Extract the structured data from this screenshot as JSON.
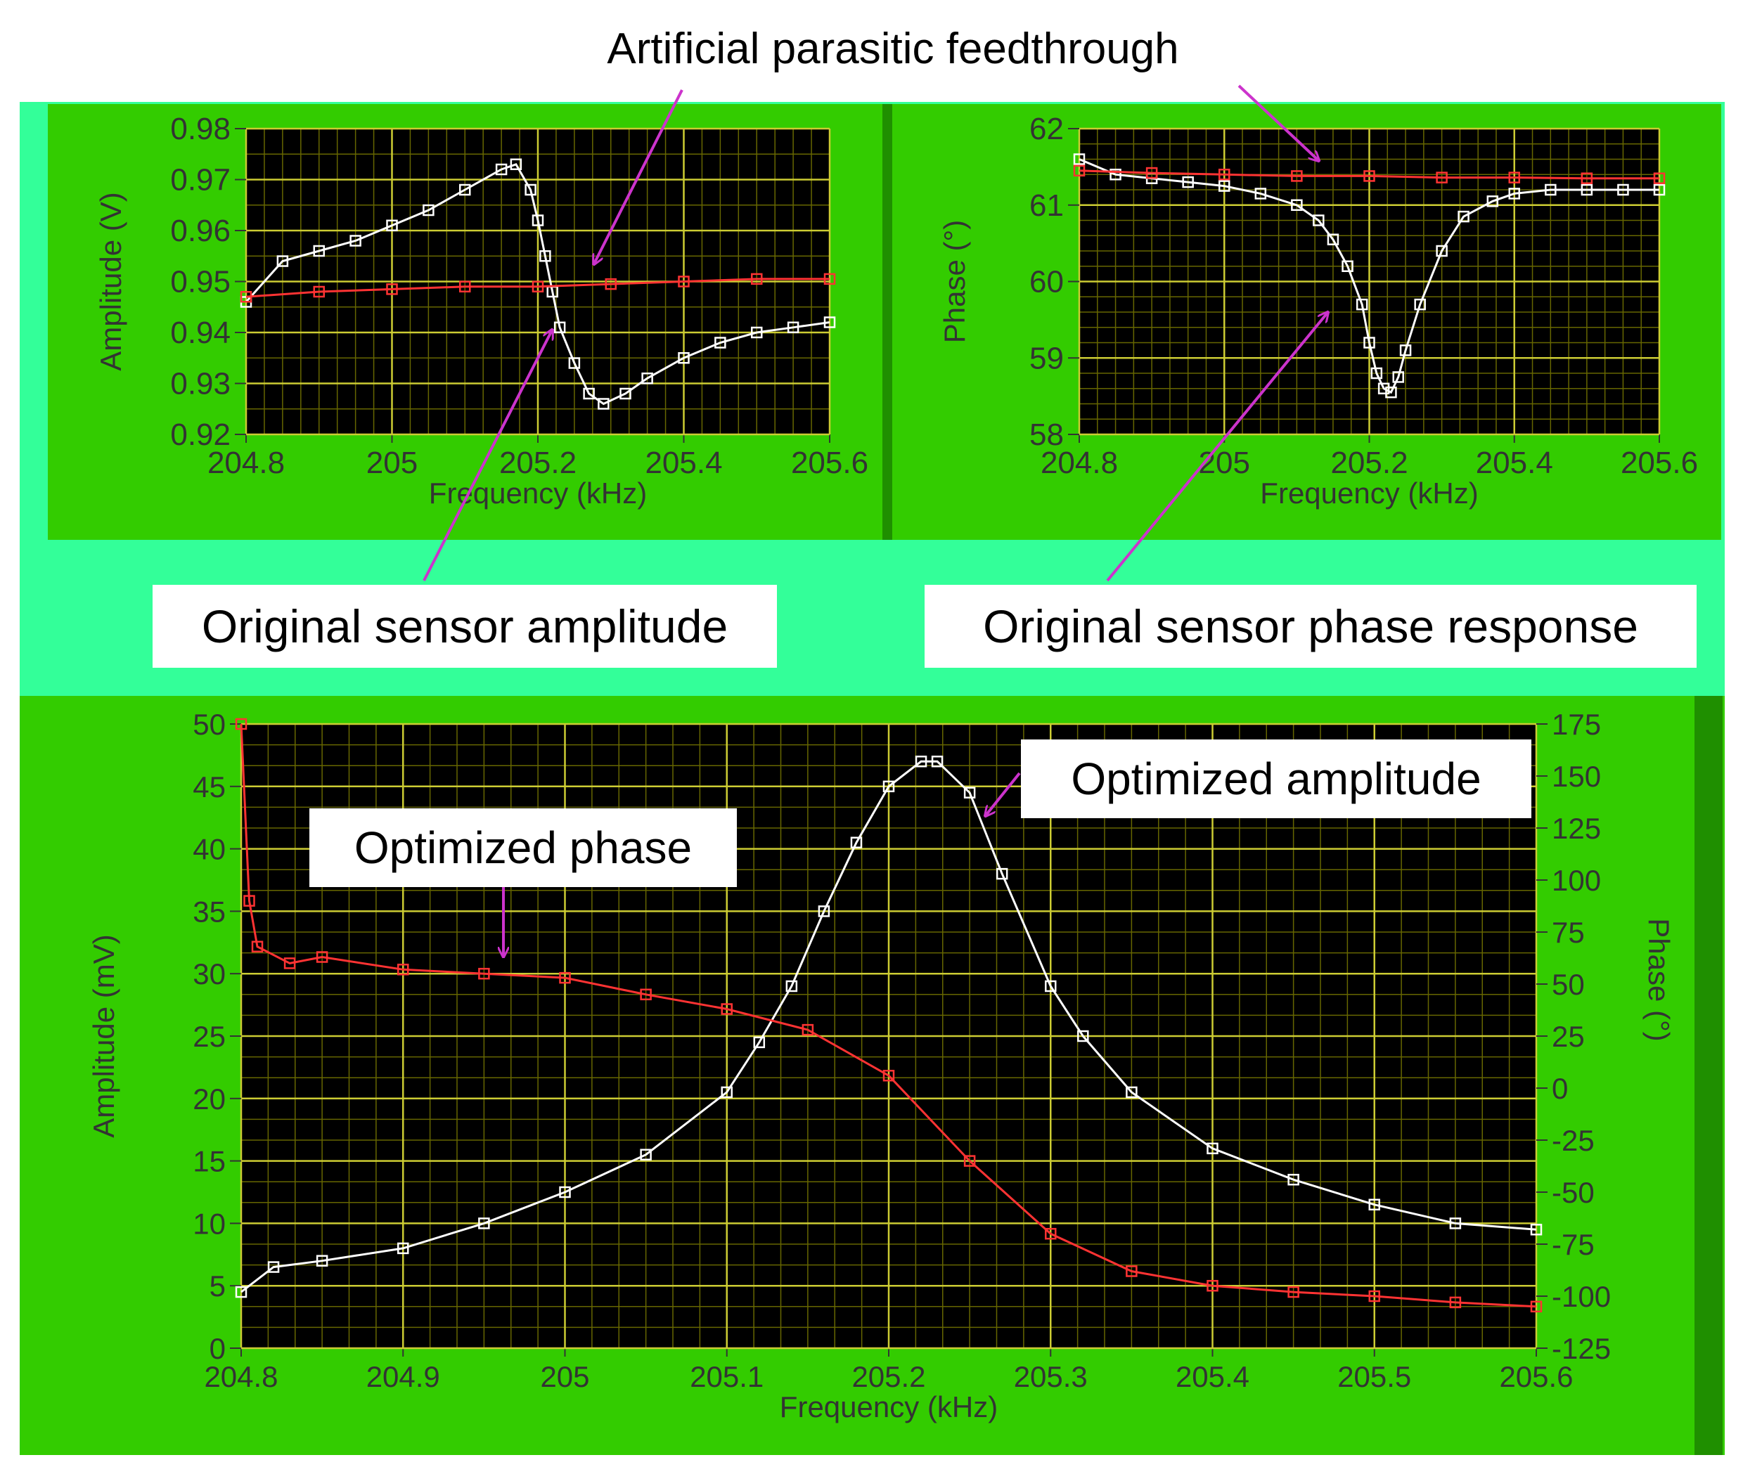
{
  "colors": {
    "background": "#ffffff",
    "outer_frame": "#33ff99",
    "panel_green": "#33cc00",
    "panel_dark_edge": "#1f8f00",
    "plot_bg": "#000000",
    "grid_major": "#cccc33",
    "grid_minor": "#666600",
    "original_trace": "#ffffff",
    "feedthrough_trace": "#ff3333",
    "optimized_phase_trace": "#ff3333",
    "optimized_amplitude_trace": "#ffffff",
    "arrow": "#cc33cc"
  },
  "annotations": {
    "feedthrough": "Artificial parasitic feedthrough",
    "original_amplitude": "Original sensor amplitude",
    "original_phase": "Original sensor phase response",
    "optimized_amplitude": "Optimized amplitude",
    "optimized_phase": "Optimized phase"
  },
  "chart_data": [
    {
      "type": "line",
      "xlabel": "Frequency (kHz)",
      "ylabel": "Amplitude (V)",
      "xlim": [
        204.8,
        205.6
      ],
      "ylim": [
        0.92,
        0.98
      ],
      "xticks": [
        204.8,
        205.0,
        205.2,
        205.4,
        205.6
      ],
      "xtick_labels": [
        "204.8",
        "205",
        "205.2",
        "205.4",
        "205.6"
      ],
      "yticks": [
        0.92,
        0.93,
        0.94,
        0.95,
        0.96,
        0.97,
        0.98
      ],
      "ytick_labels": [
        "0.92",
        "0.93",
        "0.94",
        "0.95",
        "0.96",
        "0.97",
        "0.98"
      ],
      "grid": true,
      "series": [
        {
          "color": "#ffffff",
          "marker": "square",
          "x": [
            204.8,
            204.85,
            204.9,
            204.95,
            205.0,
            205.05,
            205.1,
            205.15,
            205.17,
            205.19,
            205.2,
            205.21,
            205.22,
            205.23,
            205.25,
            205.27,
            205.29,
            205.32,
            205.35,
            205.4,
            205.45,
            205.5,
            205.55,
            205.6
          ],
          "y": [
            0.946,
            0.954,
            0.956,
            0.958,
            0.961,
            0.964,
            0.968,
            0.972,
            0.973,
            0.968,
            0.962,
            0.955,
            0.948,
            0.941,
            0.934,
            0.928,
            0.926,
            0.928,
            0.931,
            0.935,
            0.938,
            0.94,
            0.941,
            0.942
          ]
        },
        {
          "color": "#ff3333",
          "marker": "square",
          "x": [
            204.8,
            204.9,
            205.0,
            205.1,
            205.2,
            205.3,
            205.4,
            205.5,
            205.6
          ],
          "y": [
            0.947,
            0.948,
            0.9485,
            0.949,
            0.949,
            0.9495,
            0.95,
            0.9505,
            0.9505
          ]
        }
      ]
    },
    {
      "type": "line",
      "xlabel": "Frequency (kHz)",
      "ylabel": "Phase (°)",
      "xlim": [
        204.8,
        205.6
      ],
      "ylim": [
        58,
        62
      ],
      "xticks": [
        204.8,
        205.0,
        205.2,
        205.4,
        205.6
      ],
      "xtick_labels": [
        "204.8",
        "205",
        "205.2",
        "205.4",
        "205.6"
      ],
      "yticks": [
        58,
        59,
        60,
        61,
        62
      ],
      "ytick_labels": [
        "58",
        "59",
        "60",
        "61",
        "62"
      ],
      "grid": true,
      "series": [
        {
          "color": "#ffffff",
          "marker": "square",
          "x": [
            204.8,
            204.85,
            204.9,
            204.95,
            205.0,
            205.05,
            205.1,
            205.13,
            205.15,
            205.17,
            205.19,
            205.2,
            205.21,
            205.22,
            205.23,
            205.24,
            205.25,
            205.27,
            205.3,
            205.33,
            205.37,
            205.4,
            205.45,
            205.5,
            205.55,
            205.6
          ],
          "y": [
            61.6,
            61.4,
            61.35,
            61.3,
            61.25,
            61.15,
            61.0,
            60.8,
            60.55,
            60.2,
            59.7,
            59.2,
            58.8,
            58.6,
            58.55,
            58.75,
            59.1,
            59.7,
            60.4,
            60.85,
            61.05,
            61.15,
            61.2,
            61.2,
            61.2,
            61.2
          ]
        },
        {
          "color": "#ff3333",
          "marker": "square",
          "x": [
            204.8,
            204.9,
            205.0,
            205.1,
            205.2,
            205.3,
            205.4,
            205.5,
            205.6
          ],
          "y": [
            61.45,
            61.42,
            61.4,
            61.38,
            61.38,
            61.36,
            61.36,
            61.35,
            61.35
          ]
        }
      ]
    },
    {
      "type": "line",
      "xlabel": "Frequency (kHz)",
      "ylabel": "Amplitude (mV)",
      "y2label": "Phase (°)",
      "xlim": [
        204.8,
        205.6
      ],
      "ylim": [
        0,
        50
      ],
      "y2lim": [
        -125,
        175
      ],
      "xticks": [
        204.8,
        204.9,
        205.0,
        205.1,
        205.2,
        205.3,
        205.4,
        205.5,
        205.6
      ],
      "xtick_labels": [
        "204.8",
        "204.9",
        "205",
        "205.1",
        "205.2",
        "205.3",
        "205.4",
        "205.5",
        "205.6"
      ],
      "yticks": [
        0,
        5,
        10,
        15,
        20,
        25,
        30,
        35,
        40,
        45,
        50
      ],
      "ytick_labels": [
        "0",
        "5",
        "10",
        "15",
        "20",
        "25",
        "30",
        "35",
        "40",
        "45",
        "50"
      ],
      "y2ticks": [
        -125,
        -100,
        -75,
        -50,
        -25,
        0,
        25,
        50,
        75,
        100,
        125,
        150,
        175
      ],
      "y2tick_labels": [
        "-125",
        "-100",
        "-75",
        "-50",
        "-25",
        "0",
        "25",
        "50",
        "75",
        "100",
        "125",
        "150",
        "175"
      ],
      "grid": true,
      "series": [
        {
          "color": "#ffffff",
          "marker": "square",
          "axis": "left",
          "x": [
            204.8,
            204.82,
            204.85,
            204.9,
            204.95,
            205.0,
            205.05,
            205.1,
            205.12,
            205.14,
            205.16,
            205.18,
            205.2,
            205.22,
            205.23,
            205.25,
            205.27,
            205.3,
            205.32,
            205.35,
            205.4,
            205.45,
            205.5,
            205.55,
            205.6
          ],
          "y": [
            4.5,
            6.5,
            7.0,
            8.0,
            10.0,
            12.5,
            15.5,
            20.5,
            24.5,
            29.0,
            35.0,
            40.5,
            45.0,
            47.0,
            47.0,
            44.5,
            38.0,
            29.0,
            25.0,
            20.5,
            16.0,
            13.5,
            11.5,
            10.0,
            9.5
          ]
        },
        {
          "color": "#ff3333",
          "marker": "square",
          "axis": "right",
          "x": [
            204.8,
            204.805,
            204.81,
            204.83,
            204.85,
            204.9,
            204.95,
            205.0,
            205.05,
            205.1,
            205.15,
            205.2,
            205.25,
            205.3,
            205.35,
            205.4,
            205.45,
            205.5,
            205.55,
            205.6
          ],
          "y": [
            175,
            90,
            68,
            60,
            63,
            57,
            55,
            53,
            45,
            38,
            28,
            6,
            -35,
            -70,
            -88,
            -95,
            -98,
            -100,
            -103,
            -105
          ]
        }
      ]
    }
  ]
}
